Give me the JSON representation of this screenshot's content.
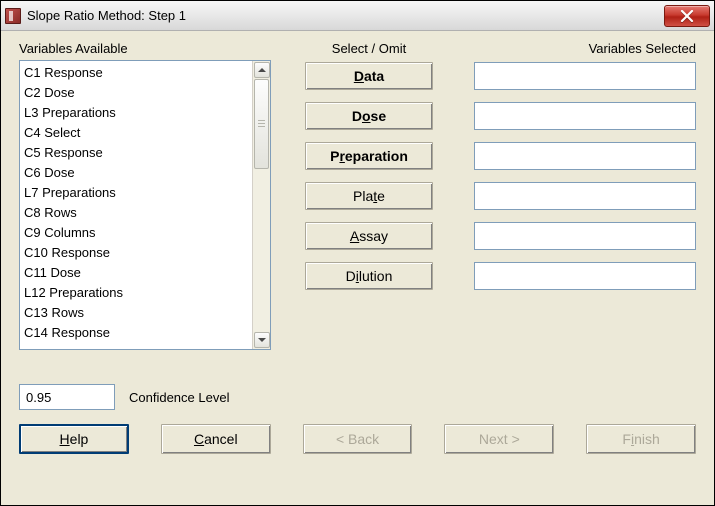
{
  "window": {
    "title": "Slope Ratio Method: Step 1"
  },
  "labels": {
    "available": "Variables Available",
    "select_omit": "Select / Omit",
    "selected": "Variables Selected",
    "confidence": "Confidence Level"
  },
  "variables_available": [
    "C1 Response",
    "C2 Dose",
    "L3 Preparations",
    "C4 Select",
    "C5 Response",
    "C6 Dose",
    "L7 Preparations",
    "C8 Rows",
    "C9 Columns",
    "C10 Response",
    "C11 Dose",
    "L12 Preparations",
    "C13 Rows",
    "C14 Response"
  ],
  "select_buttons": [
    {
      "pre": "",
      "u": "D",
      "post": "ata",
      "bold": true,
      "name": "data-button"
    },
    {
      "pre": "D",
      "u": "o",
      "post": "se",
      "bold": true,
      "name": "dose-button"
    },
    {
      "pre": "P",
      "u": "r",
      "post": "eparation",
      "bold": true,
      "name": "preparation-button"
    },
    {
      "pre": "Pla",
      "u": "t",
      "post": "e",
      "bold": false,
      "name": "plate-button"
    },
    {
      "pre": "",
      "u": "A",
      "post": "ssay",
      "bold": false,
      "name": "assay-button"
    },
    {
      "pre": "D",
      "u": "i",
      "post": "lution",
      "bold": false,
      "name": "dilution-button"
    }
  ],
  "selected_fields": [
    "",
    "",
    "",
    "",
    "",
    ""
  ],
  "confidence_value": "0.95",
  "footer": {
    "help": {
      "pre": "",
      "u": "H",
      "post": "elp"
    },
    "cancel": {
      "pre": "",
      "u": "C",
      "post": "ancel"
    },
    "back": {
      "pre": "",
      "u": "<",
      "post": " Back"
    },
    "next": {
      "pre": "Next ",
      "u": ">",
      "post": ""
    },
    "finish": {
      "pre": "F",
      "u": "i",
      "post": "nish"
    }
  }
}
